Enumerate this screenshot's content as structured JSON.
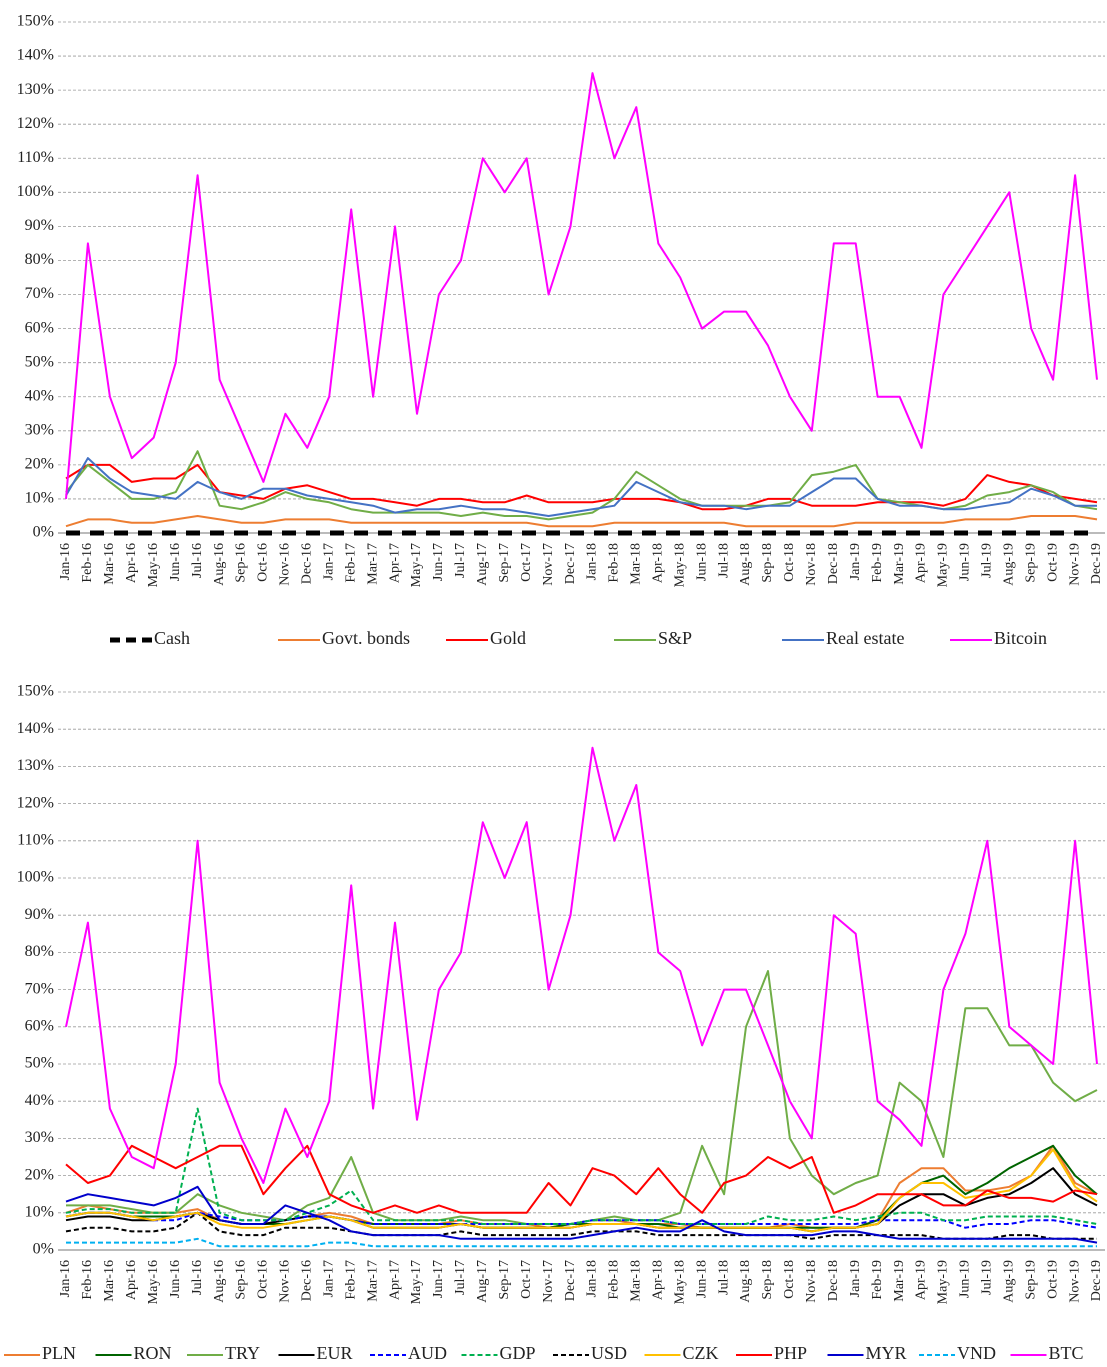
{
  "chart_data": [
    {
      "type": "line",
      "grid": true,
      "ylim": [
        0,
        150
      ],
      "yticks": [
        {
          "value": 0,
          "label": "0%"
        },
        {
          "value": 10,
          "label": "10%"
        },
        {
          "value": 20,
          "label": "20%"
        },
        {
          "value": 30,
          "label": "30%"
        },
        {
          "value": 40,
          "label": "40%"
        },
        {
          "value": 50,
          "label": "50%"
        },
        {
          "value": 60,
          "label": "60%"
        },
        {
          "value": 70,
          "label": "70%"
        },
        {
          "value": 80,
          "label": "80%"
        },
        {
          "value": 90,
          "label": "90%"
        },
        {
          "value": 100,
          "label": "100%"
        },
        {
          "value": 110,
          "label": "110%"
        },
        {
          "value": 120,
          "label": "120%"
        },
        {
          "value": 130,
          "label": "130%"
        },
        {
          "value": 140,
          "label": "140%"
        },
        {
          "value": 150,
          "label": "150%"
        }
      ],
      "categories": [
        "Jan-16",
        "Feb-16",
        "Mar-16",
        "Apr-16",
        "May-16",
        "Jun-16",
        "Jul-16",
        "Aug-16",
        "Sep-16",
        "Oct-16",
        "Nov-16",
        "Dec-16",
        "Jan-17",
        "Feb-17",
        "Mar-17",
        "Apr-17",
        "May-17",
        "Jun-17",
        "Jul-17",
        "Aug-17",
        "Sep-17",
        "Oct-17",
        "Nov-17",
        "Dec-17",
        "Jan-18",
        "Feb-18",
        "Mar-18",
        "Apr-18",
        "May-18",
        "Jun-18",
        "Jul-18",
        "Aug-18",
        "Sep-18",
        "Oct-18",
        "Nov-18",
        "Dec-18",
        "Jan-19",
        "Feb-19",
        "Mar-19",
        "Apr-19",
        "May-19",
        "Jun-19",
        "Jul-19",
        "Aug-19",
        "Sep-19",
        "Oct-19",
        "Nov-19",
        "Dec-19"
      ],
      "legend": "bottom",
      "series": [
        {
          "name": "Cash",
          "color": "#000000",
          "dashed": true,
          "thick": true,
          "values": [
            0,
            0,
            0,
            0,
            0,
            0,
            0,
            0,
            0,
            0,
            0,
            0,
            0,
            0,
            0,
            0,
            0,
            0,
            0,
            0,
            0,
            0,
            0,
            0,
            0,
            0,
            0,
            0,
            0,
            0,
            0,
            0,
            0,
            0,
            0,
            0,
            0,
            0,
            0,
            0,
            0,
            0,
            0,
            0,
            0,
            0,
            0,
            0
          ]
        },
        {
          "name": "Govt. bonds",
          "color": "#ed7d31",
          "values": [
            2,
            4,
            4,
            3,
            3,
            4,
            5,
            4,
            3,
            3,
            4,
            4,
            4,
            3,
            3,
            3,
            3,
            3,
            3,
            3,
            3,
            3,
            2,
            2,
            2,
            3,
            3,
            3,
            3,
            3,
            3,
            2,
            2,
            2,
            2,
            2,
            3,
            3,
            3,
            3,
            3,
            4,
            4,
            4,
            5,
            5,
            5,
            4
          ]
        },
        {
          "name": "Gold",
          "color": "#ff0000",
          "values": [
            16,
            20,
            20,
            15,
            16,
            16,
            20,
            12,
            11,
            10,
            13,
            14,
            12,
            10,
            10,
            9,
            8,
            10,
            10,
            9,
            9,
            11,
            9,
            9,
            9,
            10,
            10,
            10,
            9,
            7,
            7,
            8,
            10,
            10,
            8,
            8,
            8,
            9,
            9,
            9,
            8,
            10,
            17,
            15,
            14,
            11,
            10,
            9
          ]
        },
        {
          "name": "S&P",
          "color": "#70ad47",
          "values": [
            12,
            20,
            15,
            10,
            10,
            12,
            24,
            8,
            7,
            9,
            12,
            10,
            9,
            7,
            6,
            6,
            6,
            6,
            5,
            6,
            5,
            5,
            4,
            5,
            6,
            10,
            18,
            14,
            10,
            8,
            8,
            8,
            8,
            9,
            17,
            18,
            20,
            10,
            9,
            8,
            7,
            8,
            11,
            12,
            14,
            12,
            8,
            7
          ]
        },
        {
          "name": "Real estate",
          "color": "#4472c4",
          "values": [
            11,
            22,
            16,
            12,
            11,
            10,
            15,
            12,
            10,
            13,
            13,
            11,
            10,
            9,
            8,
            6,
            7,
            7,
            8,
            7,
            7,
            6,
            5,
            6,
            7,
            8,
            15,
            12,
            9,
            8,
            8,
            7,
            8,
            8,
            12,
            16,
            16,
            10,
            8,
            8,
            7,
            7,
            8,
            9,
            13,
            11,
            8,
            8
          ]
        },
        {
          "name": "Bitcoin",
          "color": "#ff00ff",
          "values": [
            10,
            85,
            40,
            22,
            28,
            50,
            105,
            45,
            30,
            15,
            35,
            25,
            40,
            95,
            40,
            90,
            35,
            70,
            80,
            110,
            100,
            110,
            70,
            90,
            135,
            110,
            125,
            85,
            75,
            60,
            65,
            65,
            55,
            40,
            30,
            85,
            85,
            40,
            40,
            25,
            70,
            80,
            90,
            100,
            60,
            45,
            105,
            45
          ]
        }
      ]
    },
    {
      "type": "line",
      "grid": true,
      "ylim": [
        0,
        150
      ],
      "yticks": [
        {
          "value": 0,
          "label": "0%"
        },
        {
          "value": 10,
          "label": "10%"
        },
        {
          "value": 20,
          "label": "20%"
        },
        {
          "value": 30,
          "label": "30%"
        },
        {
          "value": 40,
          "label": "40%"
        },
        {
          "value": 50,
          "label": "50%"
        },
        {
          "value": 60,
          "label": "60%"
        },
        {
          "value": 70,
          "label": "70%"
        },
        {
          "value": 80,
          "label": "80%"
        },
        {
          "value": 90,
          "label": "90%"
        },
        {
          "value": 100,
          "label": "100%"
        },
        {
          "value": 110,
          "label": "110%"
        },
        {
          "value": 120,
          "label": "120%"
        },
        {
          "value": 130,
          "label": "130%"
        },
        {
          "value": 140,
          "label": "140%"
        },
        {
          "value": 150,
          "label": "150%"
        }
      ],
      "categories": [
        "Jan-16",
        "Feb-16",
        "Mar-16",
        "Apr-16",
        "May-16",
        "Jun-16",
        "Jul-16",
        "Aug-16",
        "Sep-16",
        "Oct-16",
        "Nov-16",
        "Dec-16",
        "Jan-17",
        "Feb-17",
        "Mar-17",
        "Apr-17",
        "May-17",
        "Jun-17",
        "Jul-17",
        "Aug-17",
        "Sep-17",
        "Oct-17",
        "Nov-17",
        "Dec-17",
        "Jan-18",
        "Feb-18",
        "Mar-18",
        "Apr-18",
        "May-18",
        "Jun-18",
        "Jul-18",
        "Aug-18",
        "Sep-18",
        "Oct-18",
        "Nov-18",
        "Dec-18",
        "Jan-19",
        "Feb-19",
        "Mar-19",
        "Apr-19",
        "May-19",
        "Jun-19",
        "Jul-19",
        "Aug-19",
        "Sep-19",
        "Oct-19",
        "Nov-19",
        "Dec-19"
      ],
      "legend": "bottom",
      "series": [
        {
          "name": "PLN",
          "color": "#ed7d31",
          "values": [
            10,
            12,
            11,
            10,
            10,
            10,
            11,
            8,
            7,
            7,
            8,
            9,
            10,
            9,
            7,
            7,
            7,
            7,
            8,
            7,
            7,
            7,
            6,
            7,
            8,
            8,
            7,
            7,
            7,
            6,
            6,
            6,
            6,
            7,
            6,
            6,
            6,
            8,
            18,
            22,
            22,
            16,
            16,
            17,
            20,
            28,
            18,
            15
          ]
        },
        {
          "name": "RON",
          "color": "#006400",
          "values": [
            9,
            10,
            10,
            9,
            9,
            9,
            10,
            8,
            7,
            7,
            7,
            8,
            9,
            8,
            7,
            7,
            7,
            7,
            7,
            6,
            6,
            6,
            6,
            7,
            7,
            7,
            7,
            7,
            6,
            6,
            6,
            6,
            6,
            6,
            6,
            6,
            6,
            8,
            14,
            18,
            20,
            15,
            18,
            22,
            25,
            28,
            20,
            15
          ]
        },
        {
          "name": "TRY",
          "color": "#70ad47",
          "values": [
            12,
            12,
            12,
            11,
            10,
            10,
            15,
            12,
            10,
            9,
            8,
            12,
            14,
            25,
            10,
            8,
            8,
            8,
            9,
            8,
            8,
            7,
            7,
            7,
            8,
            9,
            8,
            8,
            10,
            28,
            15,
            60,
            75,
            30,
            20,
            15,
            18,
            20,
            45,
            40,
            25,
            65,
            65,
            55,
            55,
            45,
            40,
            43
          ]
        },
        {
          "name": "EUR",
          "color": "#000000",
          "values": [
            8,
            9,
            9,
            8,
            8,
            9,
            10,
            8,
            7,
            7,
            8,
            9,
            9,
            8,
            6,
            6,
            6,
            6,
            7,
            6,
            6,
            6,
            6,
            6,
            7,
            7,
            7,
            6,
            6,
            6,
            6,
            6,
            6,
            6,
            5,
            6,
            6,
            7,
            12,
            15,
            15,
            12,
            14,
            15,
            18,
            22,
            15,
            12
          ]
        },
        {
          "name": "AUD",
          "color": "#0000ff",
          "dashed": true,
          "values": [
            9,
            10,
            10,
            9,
            8,
            8,
            10,
            9,
            8,
            8,
            8,
            9,
            9,
            8,
            7,
            7,
            7,
            7,
            7,
            7,
            7,
            7,
            7,
            7,
            8,
            8,
            8,
            8,
            7,
            7,
            7,
            7,
            7,
            7,
            7,
            7,
            7,
            8,
            8,
            8,
            8,
            6,
            7,
            7,
            8,
            8,
            7,
            6
          ]
        },
        {
          "name": "GDP",
          "color": "#00b050",
          "dashed": true,
          "values": [
            10,
            11,
            11,
            10,
            10,
            10,
            38,
            10,
            8,
            8,
            8,
            10,
            12,
            16,
            8,
            8,
            8,
            8,
            8,
            7,
            7,
            7,
            7,
            7,
            8,
            8,
            8,
            8,
            7,
            7,
            7,
            7,
            9,
            8,
            8,
            9,
            8,
            9,
            10,
            10,
            8,
            8,
            9,
            9,
            9,
            9,
            8,
            7
          ]
        },
        {
          "name": "USD",
          "color": "#000000",
          "dashed": true,
          "values": [
            5,
            6,
            6,
            5,
            5,
            6,
            10,
            5,
            4,
            4,
            6,
            6,
            6,
            5,
            4,
            4,
            4,
            4,
            5,
            4,
            4,
            4,
            4,
            4,
            5,
            5,
            5,
            4,
            4,
            4,
            4,
            4,
            4,
            4,
            3,
            4,
            4,
            4,
            4,
            4,
            3,
            3,
            3,
            4,
            4,
            3,
            3,
            3
          ]
        },
        {
          "name": "CZK",
          "color": "#ffc000",
          "values": [
            9,
            10,
            10,
            9,
            8,
            9,
            10,
            7,
            6,
            6,
            7,
            8,
            9,
            8,
            6,
            6,
            6,
            6,
            7,
            6,
            6,
            6,
            6,
            6,
            7,
            7,
            7,
            6,
            6,
            6,
            6,
            6,
            6,
            6,
            5,
            6,
            6,
            7,
            14,
            18,
            18,
            14,
            15,
            16,
            20,
            27,
            17,
            13
          ]
        },
        {
          "name": "PHP",
          "color": "#ff0000",
          "values": [
            23,
            18,
            20,
            28,
            25,
            22,
            25,
            28,
            28,
            15,
            22,
            28,
            15,
            12,
            10,
            12,
            10,
            12,
            10,
            10,
            10,
            10,
            18,
            12,
            22,
            20,
            15,
            22,
            15,
            10,
            18,
            20,
            25,
            22,
            25,
            10,
            12,
            15,
            15,
            15,
            12,
            12,
            16,
            14,
            14,
            13,
            16,
            15
          ]
        },
        {
          "name": "MYR",
          "color": "#0000cc",
          "values": [
            13,
            15,
            14,
            13,
            12,
            14,
            17,
            8,
            7,
            7,
            12,
            10,
            8,
            5,
            4,
            4,
            4,
            4,
            3,
            3,
            3,
            3,
            3,
            3,
            4,
            5,
            6,
            5,
            5,
            8,
            5,
            4,
            4,
            4,
            4,
            5,
            5,
            4,
            3,
            3,
            3,
            3,
            3,
            3,
            3,
            3,
            3,
            2
          ]
        },
        {
          "name": "VND",
          "color": "#00b0f0",
          "dashed": true,
          "values": [
            2,
            2,
            2,
            2,
            2,
            2,
            3,
            1,
            1,
            1,
            1,
            1,
            2,
            2,
            1,
            1,
            1,
            1,
            1,
            1,
            1,
            1,
            1,
            1,
            1,
            1,
            1,
            1,
            1,
            1,
            1,
            1,
            1,
            1,
            1,
            1,
            1,
            1,
            1,
            1,
            1,
            1,
            1,
            1,
            1,
            1,
            1,
            1
          ]
        },
        {
          "name": "BTC",
          "color": "#ff00ff",
          "values": [
            60,
            88,
            38,
            25,
            22,
            50,
            110,
            45,
            30,
            18,
            38,
            25,
            40,
            98,
            38,
            88,
            35,
            70,
            80,
            115,
            100,
            115,
            70,
            90,
            135,
            110,
            125,
            80,
            75,
            55,
            70,
            70,
            55,
            40,
            30,
            90,
            85,
            40,
            35,
            28,
            70,
            85,
            110,
            60,
            55,
            50,
            110,
            50
          ]
        }
      ]
    }
  ]
}
